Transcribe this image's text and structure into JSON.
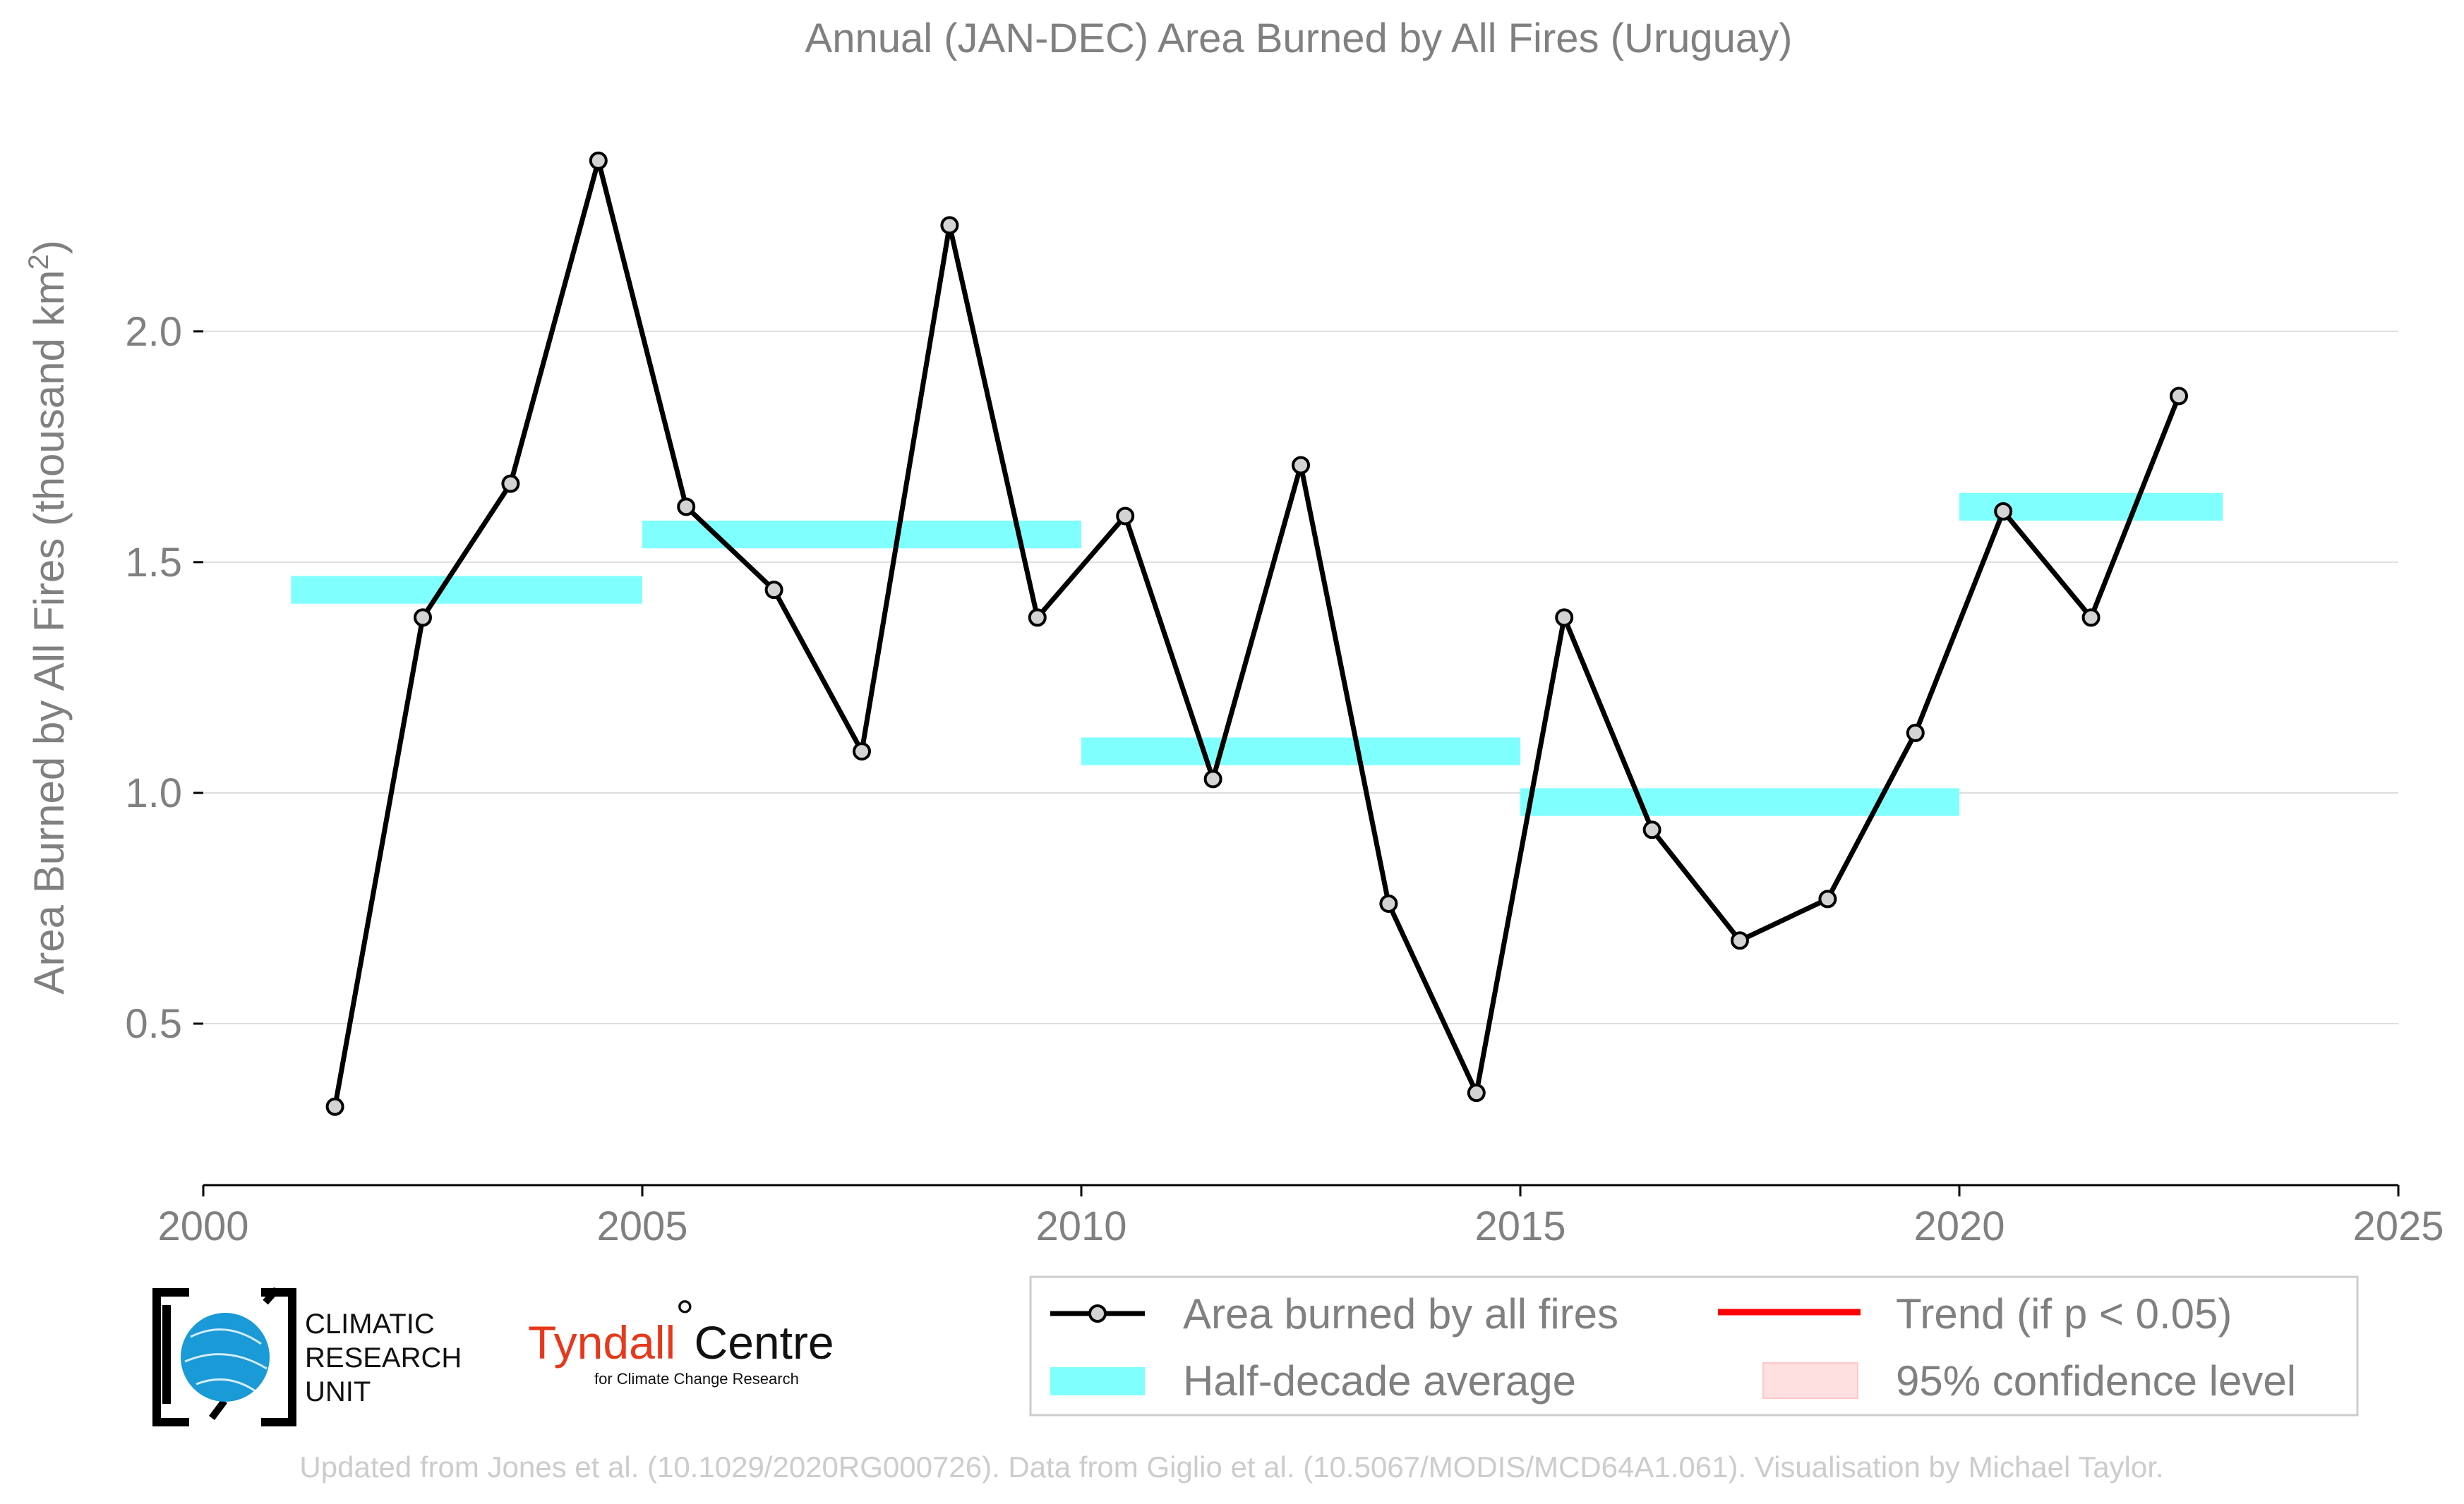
{
  "chart_data": {
    "type": "line",
    "title": "Annual (JAN-DEC) Area Burned by All Fires (Uruguay)",
    "ylabel_main": "Area Burned by All Fires (thousand km",
    "ylabel_sup": "2",
    "ylabel_end": ")",
    "xlim": [
      2000,
      2025
    ],
    "ylim": [
      0.15,
      2.55
    ],
    "xticks": [
      2000,
      2005,
      2010,
      2015,
      2020,
      2025
    ],
    "yticks": [
      "0.5",
      "1.0",
      "1.5",
      "2.0"
    ],
    "grid": "horizontal",
    "series": [
      {
        "name": "Area burned by all fires",
        "x": [
          2001.5,
          2002.5,
          2003.5,
          2004.5,
          2005.5,
          2006.5,
          2007.5,
          2008.5,
          2009.5,
          2010.5,
          2011.5,
          2012.5,
          2013.5,
          2014.5,
          2015.5,
          2016.5,
          2017.5,
          2018.5,
          2019.5,
          2020.5,
          2021.5,
          2022.5
        ],
        "values": [
          0.32,
          1.38,
          1.67,
          2.37,
          1.62,
          1.44,
          1.09,
          2.23,
          1.38,
          1.6,
          1.03,
          1.71,
          0.76,
          0.35,
          1.38,
          0.92,
          0.68,
          0.77,
          1.13,
          1.61,
          1.38,
          1.86
        ],
        "color": "#000000"
      },
      {
        "name": "Half-decade average",
        "segments": [
          {
            "x0": 2001,
            "x1": 2005,
            "value": 1.44
          },
          {
            "x0": 2005,
            "x1": 2010,
            "value": 1.56
          },
          {
            "x0": 2010,
            "x1": 2015,
            "value": 1.09
          },
          {
            "x0": 2015,
            "x1": 2020,
            "value": 0.98
          },
          {
            "x0": 2020,
            "x1": 2023,
            "value": 1.62
          }
        ],
        "color": "#80ffff"
      }
    ],
    "legend": {
      "position": "bottom-right",
      "items": [
        {
          "label": "Area burned by all fires",
          "kind": "line-marker",
          "color": "#000000"
        },
        {
          "label": "Trend (if p < 0.05)",
          "kind": "line",
          "color": "#ff0000"
        },
        {
          "label": "Half-decade average",
          "kind": "band",
          "color": "#80ffff"
        },
        {
          "label": "95% confidence level",
          "kind": "patch",
          "color": "#ffe0e0"
        }
      ]
    }
  },
  "logos": {
    "cru_lines": [
      "CLIMATIC",
      "RESEARCH",
      "UNIT"
    ],
    "tyndall_a": "Tyndall",
    "tyndall_deg": "°",
    "tyndall_b": "Centre",
    "tyndall_sub": "for Climate Change Research"
  },
  "credit": "Updated from Jones et al. (10.1029/2020RG000726). Data from Giglio et al. (10.5067/MODIS/MCD64A1.061). Visualisation by Michael Taylor."
}
